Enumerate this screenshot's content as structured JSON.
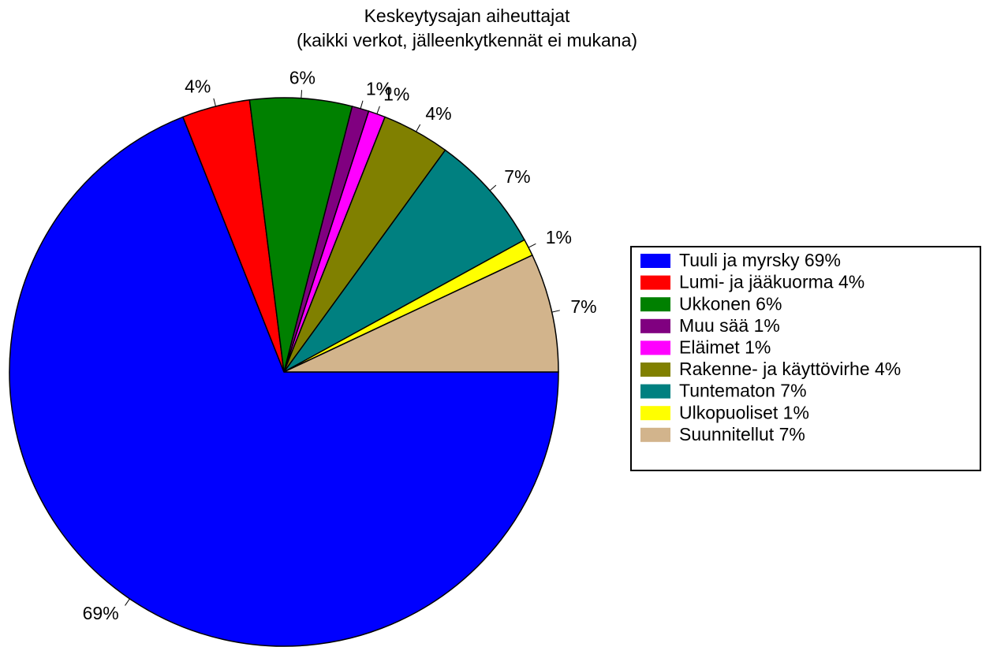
{
  "chart_data": {
    "type": "pie",
    "title": "Keskeytysajan aiheuttajat",
    "subtitle": "(kaikki verkot, jälleenkytkennät ei mukana)",
    "categories": [
      "Tuuli ja myrsky 69%",
      "Lumi- ja jääkuorma 4%",
      "Ukkonen 6%",
      "Muu sää 1%",
      "Eläimet 1%",
      "Rakenne- ja käyttövirhe 4%",
      "Tuntematon 7%",
      "Ulkopuoliset 1%",
      "Suunnitellut 7%"
    ],
    "values": [
      69,
      4,
      6,
      1,
      1,
      4,
      7,
      1,
      7
    ],
    "value_labels": [
      "69%",
      "4%",
      "6%",
      "1%",
      "1%",
      "4%",
      "7%",
      "1%",
      "7%"
    ],
    "colors": [
      "#0000ff",
      "#ff0000",
      "#008000",
      "#800080",
      "#ff00ff",
      "#808000",
      "#008080",
      "#ffff00",
      "#d2b48c"
    ],
    "legend": "right"
  }
}
